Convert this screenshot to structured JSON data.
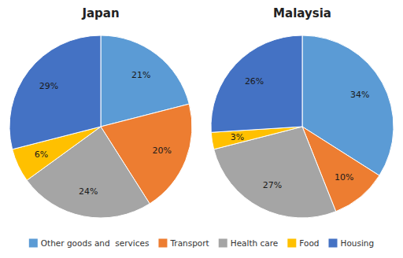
{
  "chart_data": [
    {
      "type": "pie",
      "title": "Japan",
      "categories": [
        "Other goods and  services",
        "Transport",
        "Health care",
        "Food",
        "Housing"
      ],
      "values": [
        21,
        20,
        24,
        6,
        29
      ],
      "value_labels": [
        "21%",
        "20%",
        "24%",
        "6%",
        "29%"
      ],
      "colors": [
        "#5B9BD5",
        "#ED7D31",
        "#A5A5A5",
        "#FFC000",
        "#4472C4"
      ],
      "data_labels": true,
      "legend": "bottom"
    },
    {
      "type": "pie",
      "title": "Malaysia",
      "values": [
        34,
        10,
        27,
        3,
        26
      ],
      "value_labels": [
        "34%",
        "10%",
        "27%",
        "3%",
        "26%"
      ],
      "colors": [
        "#5B9BD5",
        "#ED7D31",
        "#A5A5A5",
        "#FFC000",
        "#4472C4"
      ],
      "data_labels": true
    }
  ]
}
